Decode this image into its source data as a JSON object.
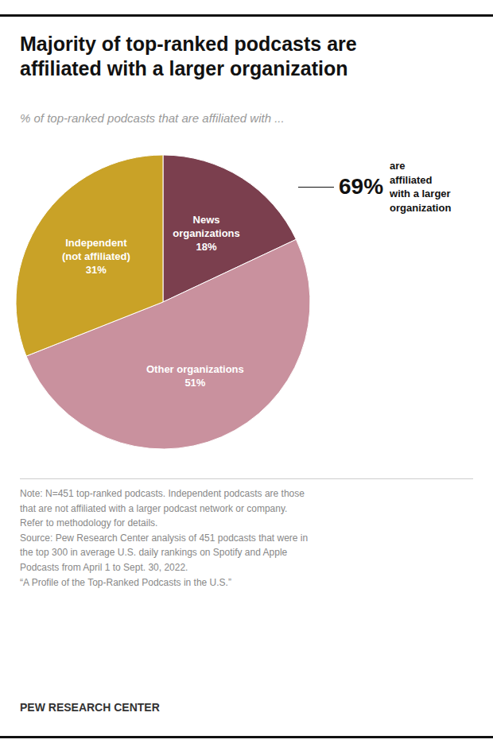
{
  "chart_data": {
    "type": "pie",
    "title": "Majority of top-ranked podcasts are\naffiliated with a larger organization",
    "subtitle": "% of top-ranked podcasts that are affiliated with ...",
    "categories": [
      "News\norganizations",
      "Other organizations",
      "Independent\n(not affiliated)"
    ],
    "values": [
      18,
      51,
      31
    ],
    "value_labels": [
      "18%",
      "51%",
      "31%"
    ],
    "colors": [
      "#7b3f4e",
      "#c9919e",
      "#c9a227"
    ],
    "data_labels": true,
    "annotations": [
      "69%",
      "are\naffiliated\nwith a larger\norganization"
    ],
    "note": "Note: N=451 top-ranked podcasts. Independent podcasts are those\nthat are not affiliated with a larger podcast network or company.\nRefer to methodology for details.\nSource: Pew Research Center analysis of 451 podcasts that were in\nthe top 300 in average U.S. daily rankings on Spotify and Apple\nPodcasts from April 1 to Sept. 30, 2022.\n“A Profile of the Top-Ranked Podcasts in the U.S.”",
    "footer": "PEW RESEARCH CENTER"
  }
}
